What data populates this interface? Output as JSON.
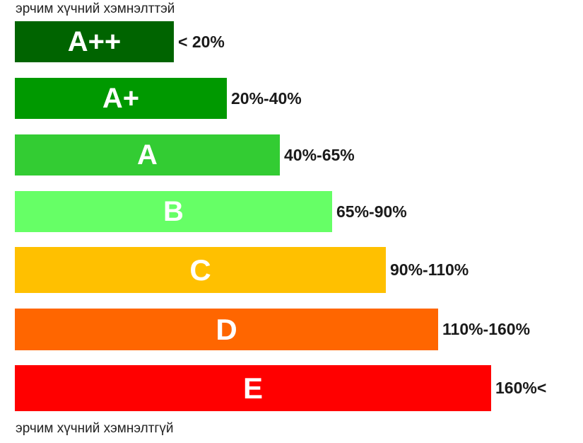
{
  "captions": {
    "top": "эрчим хүчний хэмнэлттэй",
    "bottom": "эрчим хүчний хэмнэлтгүй"
  },
  "classes": [
    {
      "label": "A++",
      "range": "< 20%",
      "color": "#006400"
    },
    {
      "label": "A+",
      "range": "20%-40%",
      "color": "#009900"
    },
    {
      "label": "A",
      "range": "40%-65%",
      "color": "#33CC33"
    },
    {
      "label": "B",
      "range": "65%-90%",
      "color": "#66FF66"
    },
    {
      "label": "C",
      "range": "90%-110%",
      "color": "#FFC000"
    },
    {
      "label": "D",
      "range": "110%-160%",
      "color": "#FF6600"
    },
    {
      "label": "E",
      "range": "160%<",
      "color": "#FF0000"
    }
  ]
}
